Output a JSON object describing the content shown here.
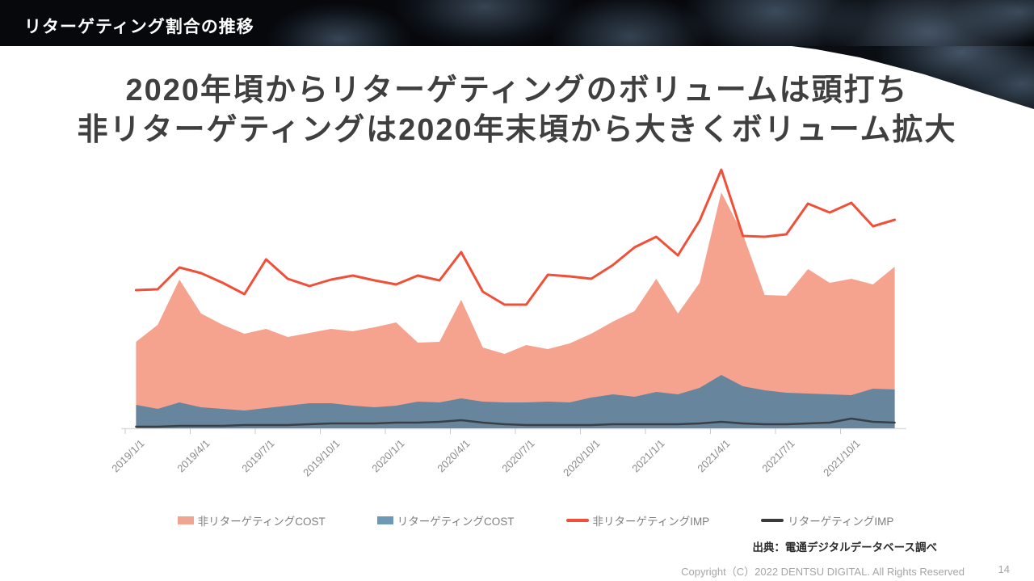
{
  "header": {
    "title": "リターゲティング割合の推移"
  },
  "headline": {
    "line1": "2020年頃からリターゲティングのボリュームは頭打ち",
    "line2": "非リターゲティングは2020年末頃から大きくボリューム拡大"
  },
  "colors": {
    "salmon_area": "#F5A28F",
    "blue_area": "#67869D",
    "legend_blue": "#6C9AB5",
    "orange_line": "#F04F38",
    "dark_line": "#3A3F45",
    "axis": "#DCDCDC",
    "tick": "#C9C9C9",
    "tick_label": "#8A8A8A",
    "legend_text": "#7F7F7F",
    "heading_text": "#3F3F3F",
    "header_bg": "#06080C"
  },
  "chart_data": {
    "type": "area",
    "note": "Monthly stacked area + line combo chart. No y-axis labels are legible in the screenshot; values below are relative heights in plot pixels above the baseline (plot height max 321 = top of 2021/4 spike). Area values are the drawn top edge of each stacked band.",
    "x": [
      "2019/1",
      "2019/2",
      "2019/3",
      "2019/4",
      "2019/5",
      "2019/6",
      "2019/7",
      "2019/8",
      "2019/9",
      "2019/10",
      "2019/11",
      "2019/12",
      "2020/1",
      "2020/2",
      "2020/3",
      "2020/4",
      "2020/5",
      "2020/6",
      "2020/7",
      "2020/8",
      "2020/9",
      "2020/10",
      "2020/11",
      "2020/12",
      "2021/1",
      "2021/2",
      "2021/3",
      "2021/4",
      "2021/5",
      "2021/6",
      "2021/7",
      "2021/8",
      "2021/9",
      "2021/10",
      "2021/11",
      "2021/12"
    ],
    "x_tick_labels": [
      "2019/1/1",
      "2019/4/1",
      "2019/7/1",
      "2019/10/1",
      "2020/1/1",
      "2020/4/1",
      "2020/7/1",
      "2020/10/1",
      "2021/1/1",
      "2021/4/1",
      "2021/7/1",
      "2021/10/1"
    ],
    "ylim": [
      0,
      321
    ],
    "grid": false,
    "legend_position": "bottom",
    "series": [
      {
        "id": "non-retargeting-cost",
        "name": "非リターゲティングCOST",
        "type": "area",
        "color": "#F5A28F",
        "values": [
          107,
          128,
          184,
          142,
          128,
          117,
          123,
          113,
          118,
          123,
          120,
          125,
          131,
          106,
          107,
          159,
          100,
          92,
          103,
          98,
          105,
          117,
          132,
          145,
          185,
          142,
          180,
          292,
          240,
          165,
          164,
          197,
          180,
          185,
          178,
          200
        ]
      },
      {
        "id": "retargeting-cost",
        "name": "リターゲティングCOST",
        "type": "area",
        "color": "#67869D",
        "values": [
          29,
          24,
          32,
          26,
          24,
          22,
          25,
          28,
          31,
          31,
          28,
          26,
          28,
          33,
          32,
          37,
          33,
          32,
          32,
          33,
          32,
          38,
          42,
          39,
          45,
          42,
          50,
          66,
          52,
          47,
          44,
          43,
          42,
          41,
          49,
          48
        ]
      },
      {
        "id": "non-retargeting-imp",
        "name": "非リターゲティングIMP",
        "type": "line",
        "color": "#F04F38",
        "width": 3,
        "values": [
          171,
          172,
          199,
          192,
          180,
          166,
          209,
          185,
          176,
          184,
          189,
          183,
          178,
          189,
          183,
          218,
          169,
          153,
          153,
          190,
          188,
          185,
          202,
          224,
          237,
          214,
          257,
          320,
          238,
          237,
          240,
          278,
          267,
          279,
          250,
          258
        ]
      },
      {
        "id": "retargeting-imp",
        "name": "リターゲティングIMP",
        "type": "line",
        "color": "#3A3F45",
        "width": 2.5,
        "values": [
          2,
          2,
          3,
          3,
          3,
          4,
          4,
          4,
          5,
          6,
          6,
          6,
          7,
          7,
          8,
          10,
          7,
          5,
          4,
          4,
          4,
          4,
          5,
          5,
          5,
          5,
          6,
          8,
          6,
          5,
          5,
          6,
          7,
          12,
          8,
          7
        ]
      }
    ]
  },
  "legend": {
    "items": [
      {
        "id": "non-retargeting-cost",
        "label": "非リターゲティングCOST",
        "swatch": "area",
        "color": "#F2A493"
      },
      {
        "id": "retargeting-cost",
        "label": "リターゲティングCOST",
        "swatch": "area",
        "color": "#6C9AB5"
      },
      {
        "id": "non-retargeting-imp",
        "label": "非リターゲティングIMP",
        "swatch": "line",
        "color": "#F04F38"
      },
      {
        "id": "retargeting-imp",
        "label": "リターゲティングIMP",
        "swatch": "line",
        "color": "#3A3A3A"
      }
    ]
  },
  "source": {
    "text": "出典：電通デジタルデータベース調べ"
  },
  "footer": {
    "copyright": "Copyright（C）2022 DENTSU DIGITAL. All Rights Reserved",
    "page": "14"
  }
}
